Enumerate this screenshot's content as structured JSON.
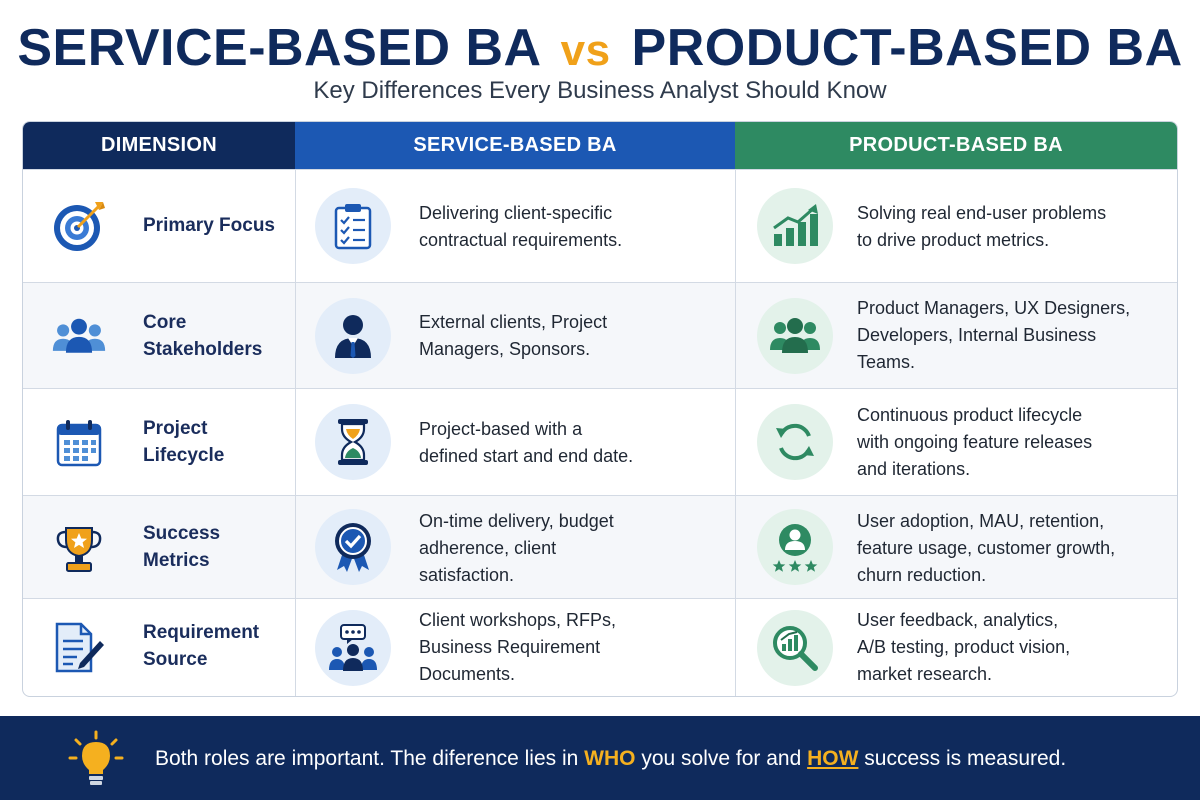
{
  "title": {
    "left": "SERVICE-BASED BA",
    "vs": "vs",
    "right": "PRODUCT-BASED BA"
  },
  "subtitle": "Key Differences Every Business Analyst Should Know",
  "headers": {
    "dimension": "DIMENSION",
    "service": "SERVICE-BASED BA",
    "product": "PRODUCT-BASED BA"
  },
  "rows": [
    {
      "dimension_lines": [
        "Primary Focus"
      ],
      "dimension_icon": "target-icon",
      "service_icon": "clipboard-checklist-icon",
      "service_lines": [
        "Delivering client-specific",
        "contractual requirements."
      ],
      "product_icon": "growth-chart-icon",
      "product_lines": [
        "Solving real end-user problems",
        "to drive product metrics."
      ]
    },
    {
      "dimension_lines": [
        "Core",
        "Stakeholders"
      ],
      "dimension_icon": "people-group-icon",
      "service_icon": "businessman-icon",
      "service_lines": [
        "External clients, Project",
        "Managers, Sponsors."
      ],
      "product_icon": "team-icon",
      "product_lines": [
        "Product Managers, UX Designers,",
        "Developers, Internal Business",
        "Teams."
      ]
    },
    {
      "dimension_lines": [
        "Project",
        "Lifecycle"
      ],
      "dimension_icon": "calendar-icon",
      "service_icon": "hourglass-icon",
      "service_lines": [
        "Project-based with a",
        "defined start and end date."
      ],
      "product_icon": "refresh-cycle-icon",
      "product_lines": [
        "Continuous product lifecycle",
        "with ongoing feature releases",
        "and iterations."
      ]
    },
    {
      "dimension_lines": [
        "Success",
        "Metrics"
      ],
      "dimension_icon": "trophy-icon",
      "service_icon": "award-badge-icon",
      "service_lines": [
        "On-time delivery, budget",
        "adherence, client",
        "satisfaction."
      ],
      "product_icon": "user-rating-icon",
      "product_lines": [
        "User adoption, MAU, retention,",
        "feature usage, customer growth,",
        "churn reduction."
      ]
    },
    {
      "dimension_lines": [
        "Requirement",
        "Source"
      ],
      "dimension_icon": "document-pen-icon",
      "service_icon": "workshop-chat-icon",
      "service_lines": [
        "Client workshops, RFPs,",
        "Business Requirement",
        "Documents."
      ],
      "product_icon": "analytics-magnifier-icon",
      "product_lines": [
        "User feedback, analytics,",
        "A/B testing, product vision,",
        "market research."
      ]
    }
  ],
  "footer": {
    "text_1": "Both roles are important. The diference lies in ",
    "highlight_1": "WHO",
    "text_2": " you solve for and ",
    "highlight_2": "HOW",
    "text_3": " success is measured.",
    "icon": "lightbulb-icon"
  },
  "colors": {
    "navy": "#0f2a5c",
    "service_blue": "#1c58b3",
    "product_green": "#2e8a62",
    "accent_orange": "#f0a11a"
  }
}
